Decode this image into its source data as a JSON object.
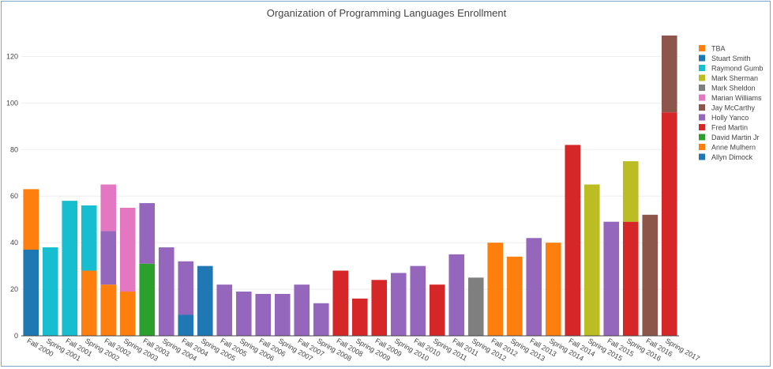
{
  "chart_data": {
    "type": "bar",
    "stacked": true,
    "title": "Organization of Programming Languages Enrollment",
    "xlabel": "",
    "ylabel": "",
    "ylim": [
      0,
      130
    ],
    "yticks": [
      0,
      20,
      40,
      60,
      80,
      100,
      120
    ],
    "grid": true,
    "legend_position": "right",
    "categories": [
      "Fall 2000",
      "Spring 2001",
      "Fall 2001",
      "Spring 2002",
      "Fall 2002",
      "Spring 2003",
      "Fall 2003",
      "Spring 2004",
      "Fall 2004",
      "Spring 2005",
      "Fall 2005",
      "Spring 2006",
      "Fall 2006",
      "Spring 2007",
      "Fall 2007",
      "Spring 2008",
      "Fall 2008",
      "Spring 2009",
      "Fall 2009",
      "Spring 2010",
      "Fall 2010",
      "Spring 2011",
      "Fall 2011",
      "Spring 2012",
      "Fall 2012",
      "Spring 2013",
      "Fall 2013",
      "Spring 2014",
      "Fall 2014",
      "Spring 2015",
      "Fall 2015",
      "Spring 2016",
      "Fall 2016",
      "Spring 2017"
    ],
    "series": [
      {
        "name": "Allyn Dimock",
        "color": "#1f77b4",
        "values": [
          37,
          0,
          0,
          0,
          0,
          0,
          0,
          0,
          9,
          30,
          0,
          0,
          0,
          0,
          0,
          0,
          0,
          0,
          0,
          0,
          0,
          0,
          0,
          0,
          0,
          0,
          0,
          0,
          0,
          0,
          0,
          0,
          0,
          0
        ]
      },
      {
        "name": "Anne Mulhern",
        "color": "#ff7f0e",
        "values": [
          26,
          0,
          0,
          28,
          22,
          19,
          0,
          0,
          0,
          0,
          0,
          0,
          0,
          0,
          0,
          0,
          0,
          0,
          0,
          0,
          0,
          0,
          0,
          0,
          0,
          0,
          0,
          0,
          0,
          0,
          0,
          0,
          0,
          0
        ]
      },
      {
        "name": "David Martin Jr",
        "color": "#2ca02c",
        "values": [
          0,
          0,
          0,
          0,
          0,
          0,
          31,
          0,
          0,
          0,
          0,
          0,
          0,
          0,
          0,
          0,
          0,
          0,
          0,
          0,
          0,
          0,
          0,
          0,
          0,
          0,
          0,
          0,
          0,
          0,
          0,
          0,
          0,
          0
        ]
      },
      {
        "name": "Fred Martin",
        "color": "#d62728",
        "values": [
          0,
          0,
          0,
          0,
          0,
          0,
          0,
          0,
          0,
          0,
          0,
          0,
          0,
          0,
          0,
          0,
          28,
          16,
          24,
          0,
          0,
          22,
          0,
          0,
          0,
          0,
          0,
          0,
          82,
          0,
          0,
          49,
          0,
          96
        ]
      },
      {
        "name": "Holly Yanco",
        "color": "#9467bd",
        "values": [
          0,
          0,
          0,
          0,
          23,
          0,
          26,
          38,
          23,
          0,
          22,
          19,
          18,
          18,
          22,
          14,
          0,
          0,
          0,
          27,
          30,
          0,
          35,
          0,
          0,
          0,
          42,
          0,
          0,
          0,
          49,
          0,
          0,
          0
        ]
      },
      {
        "name": "Jay McCarthy",
        "color": "#8c564b",
        "values": [
          0,
          0,
          0,
          0,
          0,
          0,
          0,
          0,
          0,
          0,
          0,
          0,
          0,
          0,
          0,
          0,
          0,
          0,
          0,
          0,
          0,
          0,
          0,
          0,
          0,
          0,
          0,
          0,
          0,
          0,
          0,
          0,
          52,
          33
        ]
      },
      {
        "name": "Marian Williams",
        "color": "#e377c2",
        "values": [
          0,
          0,
          0,
          0,
          20,
          36,
          0,
          0,
          0,
          0,
          0,
          0,
          0,
          0,
          0,
          0,
          0,
          0,
          0,
          0,
          0,
          0,
          0,
          0,
          0,
          0,
          0,
          0,
          0,
          0,
          0,
          0,
          0,
          0
        ]
      },
      {
        "name": "Mark Sheldon",
        "color": "#7f7f7f",
        "values": [
          0,
          0,
          0,
          0,
          0,
          0,
          0,
          0,
          0,
          0,
          0,
          0,
          0,
          0,
          0,
          0,
          0,
          0,
          0,
          0,
          0,
          0,
          0,
          25,
          0,
          0,
          0,
          0,
          0,
          0,
          0,
          0,
          0,
          0
        ]
      },
      {
        "name": "Mark Sherman",
        "color": "#bcbd22",
        "values": [
          0,
          0,
          0,
          0,
          0,
          0,
          0,
          0,
          0,
          0,
          0,
          0,
          0,
          0,
          0,
          0,
          0,
          0,
          0,
          0,
          0,
          0,
          0,
          0,
          0,
          0,
          0,
          0,
          0,
          65,
          0,
          26,
          0,
          0
        ]
      },
      {
        "name": "Raymond Gumb",
        "color": "#17becf",
        "values": [
          0,
          38,
          58,
          28,
          0,
          0,
          0,
          0,
          0,
          0,
          0,
          0,
          0,
          0,
          0,
          0,
          0,
          0,
          0,
          0,
          0,
          0,
          0,
          0,
          0,
          0,
          0,
          0,
          0,
          0,
          0,
          0,
          0,
          0
        ]
      },
      {
        "name": "Stuart Smith",
        "color": "#1f77b4",
        "values": [
          0,
          0,
          0,
          0,
          0,
          0,
          0,
          0,
          0,
          0,
          0,
          0,
          0,
          0,
          0,
          0,
          0,
          0,
          0,
          0,
          0,
          0,
          0,
          0,
          0,
          0,
          0,
          0,
          0,
          0,
          0,
          0,
          0,
          0
        ]
      },
      {
        "name": "TBA",
        "color": "#ff7f0e",
        "values": [
          0,
          0,
          0,
          0,
          0,
          0,
          0,
          0,
          0,
          0,
          0,
          0,
          0,
          0,
          0,
          0,
          0,
          0,
          0,
          0,
          0,
          0,
          0,
          0,
          40,
          34,
          0,
          40,
          0,
          0,
          0,
          0,
          0,
          0
        ]
      }
    ]
  }
}
